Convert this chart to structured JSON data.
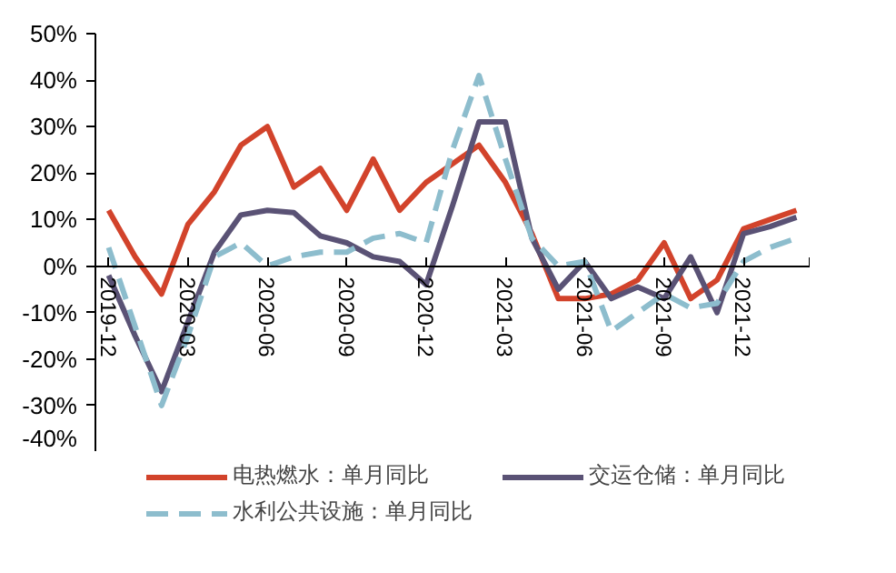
{
  "chart_data": {
    "type": "line",
    "categories": [
      "2019-12",
      null,
      null,
      "2020-03",
      null,
      null,
      "2020-06",
      null,
      null,
      "2020-09",
      null,
      null,
      "2020-12",
      null,
      null,
      "2021-03",
      null,
      null,
      "2021-06",
      null,
      null,
      "2021-09",
      null,
      null,
      "2021-12",
      null,
      null
    ],
    "series": [
      {
        "name": "电热燃水：单月同比",
        "color": "#d2432b",
        "line_style": "solid",
        "values": [
          12,
          2,
          -6,
          9,
          16,
          26,
          30,
          17,
          21,
          12,
          23,
          12,
          18,
          22,
          26,
          18,
          7,
          -7,
          -7,
          -6,
          -3,
          5,
          -7,
          -3,
          8,
          10,
          12
        ]
      },
      {
        "name": "交运仓储：单月同比",
        "color": "#5a5275",
        "line_style": "solid",
        "values": [
          -2,
          -15,
          -27,
          -12,
          3,
          11,
          12,
          11.5,
          6.5,
          5,
          2,
          1,
          -4,
          13,
          31,
          31,
          6,
          -5,
          1,
          -7,
          -4.5,
          -7,
          2,
          -10,
          7,
          8.5,
          10.5
        ]
      },
      {
        "name": "水利公共设施：单月同比",
        "color": "#8dbdcd",
        "line_style": "dashed",
        "values": [
          4,
          -13,
          -30,
          -15,
          2,
          5,
          0,
          2,
          3,
          3,
          6,
          7,
          5,
          25,
          41,
          23,
          6,
          0,
          1,
          -14,
          -10,
          -6,
          -9,
          -8,
          1,
          4,
          6
        ]
      }
    ],
    "ylim": [
      -40,
      50
    ],
    "yticks": [
      {
        "value": -40,
        "label": "-40%"
      },
      {
        "value": -30,
        "label": "-30%"
      },
      {
        "value": -20,
        "label": "-20%"
      },
      {
        "value": -10,
        "label": "-10%"
      },
      {
        "value": 0,
        "label": "0%"
      },
      {
        "value": 10,
        "label": "10%"
      },
      {
        "value": 20,
        "label": "20%"
      },
      {
        "value": 30,
        "label": "30%"
      },
      {
        "value": 40,
        "label": "40%"
      },
      {
        "value": 50,
        "label": "50%"
      }
    ],
    "legend": "bottom"
  }
}
